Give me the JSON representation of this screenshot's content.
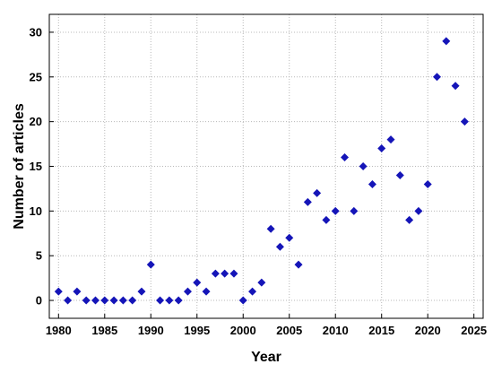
{
  "chart_data": {
    "type": "scatter",
    "title": "",
    "xlabel": "Year",
    "ylabel": "Number of articles",
    "xlim": [
      1979,
      2026
    ],
    "ylim": [
      -2,
      32
    ],
    "xticks": [
      1980,
      1985,
      1990,
      1995,
      2000,
      2005,
      2010,
      2015,
      2020,
      2025
    ],
    "yticks": [
      0,
      5,
      10,
      15,
      20,
      25,
      30
    ],
    "grid": "dotted",
    "marker": "diamond",
    "marker_color": "#1515b8",
    "series": [
      {
        "x": [
          1980,
          1981,
          1982,
          1983,
          1984,
          1985,
          1986,
          1987,
          1988,
          1989,
          1990,
          1991,
          1992,
          1993,
          1994,
          1995,
          1996,
          1997,
          1998,
          1999,
          2000,
          2001,
          2002,
          2003,
          2004,
          2005,
          2006,
          2007,
          2008,
          2009,
          2010,
          2011,
          2012,
          2013,
          2014,
          2015,
          2016,
          2017,
          2018,
          2019,
          2020,
          2021,
          2022,
          2023,
          2024
        ],
        "y": [
          1,
          0,
          1,
          0,
          0,
          0,
          0,
          0,
          0,
          1,
          4,
          0,
          0,
          0,
          1,
          2,
          1,
          3,
          3,
          3,
          0,
          1,
          2,
          8,
          6,
          7,
          4,
          11,
          12,
          9,
          10,
          16,
          10,
          15,
          13,
          17,
          18,
          14,
          9,
          10,
          13,
          25,
          29,
          24,
          20
        ]
      }
    ]
  }
}
